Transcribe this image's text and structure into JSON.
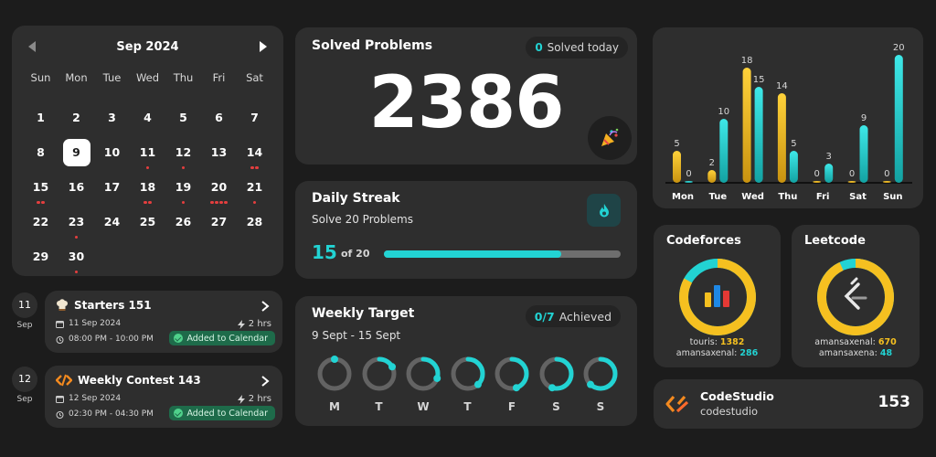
{
  "calendar": {
    "month_label": "Sep 2024",
    "weekdays": [
      "Sun",
      "Mon",
      "Tue",
      "Wed",
      "Thu",
      "Fri",
      "Sat"
    ],
    "today": 9,
    "days": [
      {
        "d": "1",
        "dots": 0
      },
      {
        "d": "2",
        "dots": 0
      },
      {
        "d": "3",
        "dots": 0
      },
      {
        "d": "4",
        "dots": 0
      },
      {
        "d": "5",
        "dots": 0
      },
      {
        "d": "6",
        "dots": 0
      },
      {
        "d": "7",
        "dots": 0
      },
      {
        "d": "8",
        "dots": 0
      },
      {
        "d": "9",
        "dots": 0
      },
      {
        "d": "10",
        "dots": 0
      },
      {
        "d": "11",
        "dots": 1
      },
      {
        "d": "12",
        "dots": 1
      },
      {
        "d": "13",
        "dots": 0
      },
      {
        "d": "14",
        "dots": 2
      },
      {
        "d": "15",
        "dots": 2
      },
      {
        "d": "16",
        "dots": 0
      },
      {
        "d": "17",
        "dots": 0
      },
      {
        "d": "18",
        "dots": 2
      },
      {
        "d": "19",
        "dots": 1
      },
      {
        "d": "20",
        "dots": 4
      },
      {
        "d": "21",
        "dots": 1
      },
      {
        "d": "22",
        "dots": 0
      },
      {
        "d": "23",
        "dots": 1
      },
      {
        "d": "24",
        "dots": 0
      },
      {
        "d": "25",
        "dots": 0
      },
      {
        "d": "26",
        "dots": 0
      },
      {
        "d": "27",
        "dots": 0
      },
      {
        "d": "28",
        "dots": 0
      },
      {
        "d": "29",
        "dots": 0
      },
      {
        "d": "30",
        "dots": 1
      }
    ]
  },
  "contests": [
    {
      "day": "11",
      "month": "Sep",
      "title": "Starters 151",
      "date": "11 Sep 2024",
      "time": "08:00 PM - 10:00 PM",
      "duration": "2 hrs",
      "status": "Added to Calendar",
      "icon": "chef-hat-icon"
    },
    {
      "day": "12",
      "month": "Sep",
      "title": "Weekly Contest 143",
      "date": "12 Sep 2024",
      "time": "02:30 PM - 04:30 PM",
      "duration": "2 hrs",
      "status": "Added to Calendar",
      "icon": "leetcode-logo-icon"
    }
  ],
  "solved": {
    "title": "Solved Problems",
    "today_count": "0",
    "today_label": "Solved today",
    "total": "2386",
    "icon": "party-popper-icon"
  },
  "streak": {
    "title": "Daily Streak",
    "subtitle": "Solve 20 Problems",
    "current": "15",
    "of_label": "of 20",
    "progress": 0.75,
    "icon": "flame-icon"
  },
  "weekly": {
    "title": "Weekly Target",
    "achieved_count": "0/7",
    "achieved_label": "Achieved",
    "range": "9 Sept - 15 Sept",
    "days": [
      {
        "label": "M",
        "fraction": 0.0
      },
      {
        "label": "T",
        "fraction": 0.17
      },
      {
        "label": "W",
        "fraction": 0.3
      },
      {
        "label": "T",
        "fraction": 0.38
      },
      {
        "label": "F",
        "fraction": 0.45
      },
      {
        "label": "S",
        "fraction": 0.55
      },
      {
        "label": "S",
        "fraction": 0.62
      }
    ]
  },
  "chart_data": {
    "type": "bar",
    "categories": [
      "Mon",
      "Tue",
      "Wed",
      "Thu",
      "Fri",
      "Sat",
      "Sun"
    ],
    "series": [
      {
        "values": [
          5,
          2,
          18,
          14,
          0,
          0,
          0
        ],
        "color": "#f5c020"
      },
      {
        "values": [
          0,
          10,
          15,
          5,
          3,
          9,
          20
        ],
        "color": "#22d3d3"
      }
    ],
    "ylim": [
      0,
      20
    ],
    "grid": false,
    "legend": "none"
  },
  "codeforces": {
    "title": "Codeforces",
    "user1": "touris",
    "score1": "1382",
    "user2": "amansaxenal",
    "score2": "286",
    "share": 0.83,
    "icon": "codeforces-logo-icon"
  },
  "leetcode": {
    "title": "Leetcode",
    "user1": "amansaxenal",
    "score1": "670",
    "user2": "amansaxena",
    "score2": "48",
    "share": 0.93,
    "icon": "leetcode-logo-icon"
  },
  "codestudio": {
    "title": "CodeStudio",
    "username": "codestudio",
    "score": "153",
    "icon": "codestudio-logo-icon"
  },
  "colors": {
    "accent": "#22d3d3",
    "yellow": "#f5c020",
    "card": "#2e2e2e",
    "bg": "#1c1c1c"
  }
}
